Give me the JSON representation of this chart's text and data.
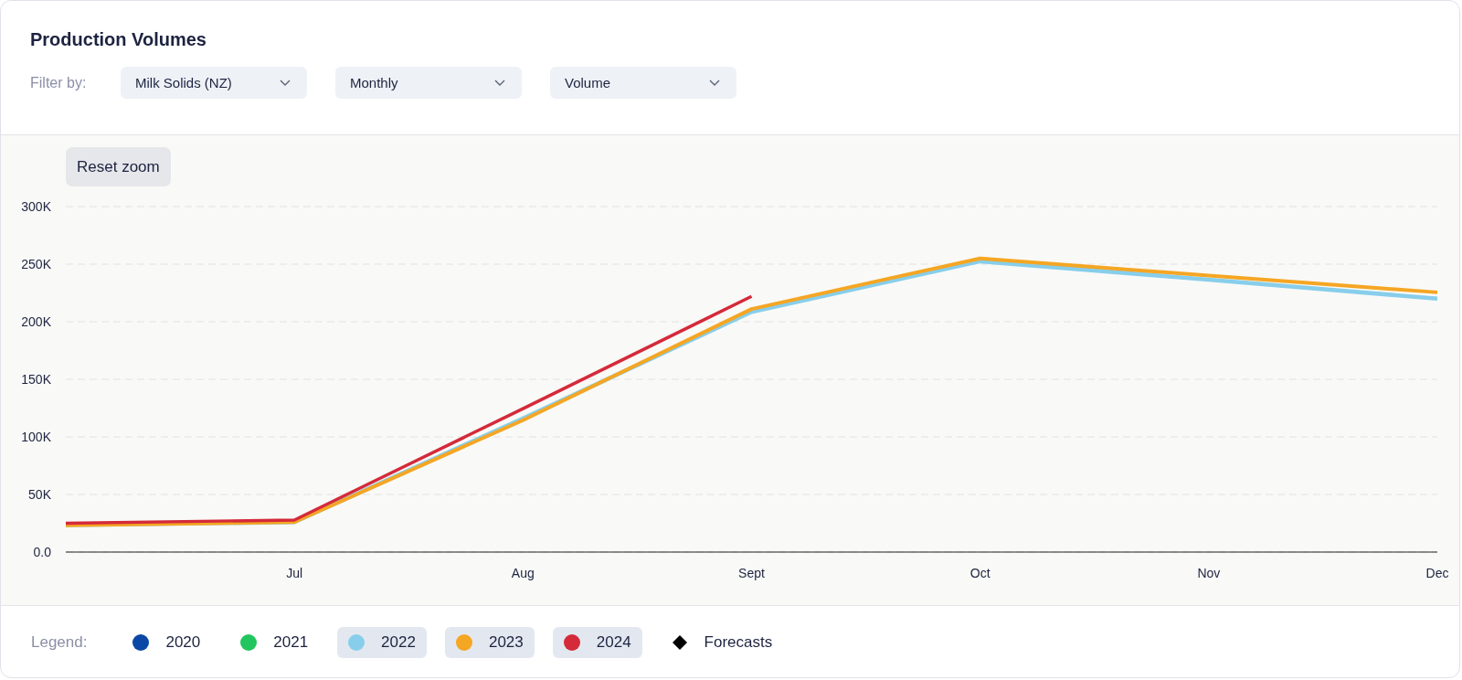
{
  "chart_data": {
    "type": "line",
    "title": "Production Volumes",
    "legend_title": "Legend:",
    "annotations": [
      "Filter by:",
      "Milk Solids (NZ)",
      "Monthly",
      "Volume",
      "Reset zoom"
    ],
    "categories": [
      null,
      "Jul",
      "Aug",
      "Sept",
      "Oct",
      "Nov",
      "Dec"
    ],
    "ylim": [
      0,
      300000
    ],
    "yticks": [
      {
        "value": 0,
        "label": "0.0"
      },
      {
        "value": 50000,
        "label": "50K"
      },
      {
        "value": 100000,
        "label": "100K"
      },
      {
        "value": 150000,
        "label": "150K"
      },
      {
        "value": 200000,
        "label": "200K"
      },
      {
        "value": 250000,
        "label": "250K"
      },
      {
        "value": 300000,
        "label": "300K"
      }
    ],
    "grid": "y",
    "legend": "bottom",
    "marker": "none",
    "line_style": "solid",
    "series": [
      {
        "name": "2020",
        "color": "#0b47a5",
        "values": [
          null,
          null,
          null,
          null,
          null,
          null,
          null
        ]
      },
      {
        "name": "2021",
        "color": "#22c55e",
        "values": [
          null,
          null,
          null,
          null,
          null,
          null,
          null
        ]
      },
      {
        "name": "2022",
        "color": "#87ceeb",
        "values": [
          23500,
          26000,
          116000,
          208500,
          252500,
          236500,
          220000
        ]
      },
      {
        "name": "2023",
        "color": "#f5a623",
        "values": [
          23300,
          26000,
          114500,
          211000,
          255000,
          240000,
          225500
        ]
      },
      {
        "name": "2024",
        "color": "#d42a3a",
        "values": [
          25000,
          27800,
          124500,
          222000,
          null,
          null,
          null
        ]
      },
      {
        "name": "Forecasts",
        "type": "scatter",
        "marker": "diamond",
        "color": "#000000",
        "values": [
          null,
          null,
          null,
          null,
          null,
          null,
          null
        ]
      }
    ]
  }
}
